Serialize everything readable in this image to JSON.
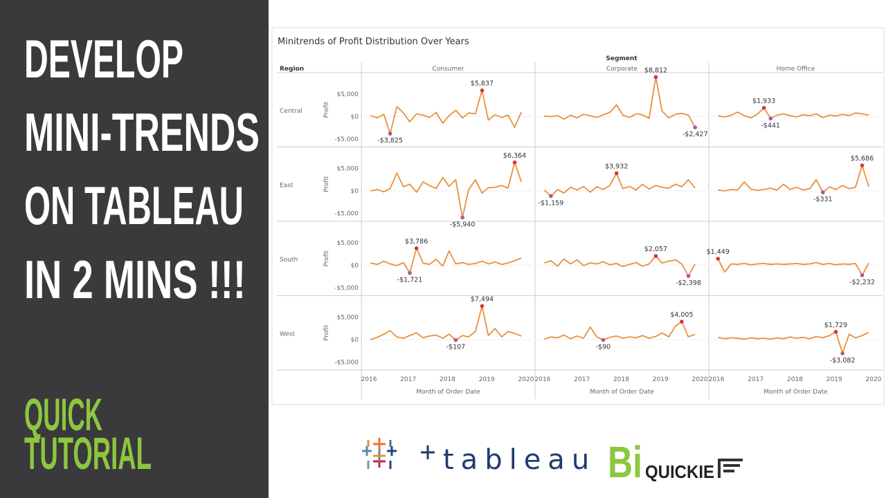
{
  "banner": {
    "title_lines": [
      "DEVELOP",
      "MINI-TRENDS",
      "ON TABLEAU",
      "IN 2 MINS !!!"
    ],
    "subtitle_lines": [
      "QUICK",
      "TUTORIAL"
    ]
  },
  "logos": {
    "tableau": "tableau",
    "bi": "Bi",
    "quickie": "QUICKIE"
  },
  "chart_data": {
    "type": "line",
    "title": "Minitrends of Profit Distribution Over Years",
    "column_header": "Segment",
    "row_header": "Region",
    "columns": [
      "Consumer",
      "Corporate",
      "Home Office"
    ],
    "rows": [
      "Central",
      "East",
      "South",
      "West"
    ],
    "y_label": "Profit",
    "x_label": "Month of Order Date",
    "color": "#e8903c",
    "max_color": "#d1343d",
    "min_color": "#a8579c",
    "xlim": [
      2016,
      2020
    ],
    "xticks": [
      2016,
      2017,
      2018,
      2019,
      2020
    ],
    "ylim": [
      -6800,
      9800
    ],
    "yticks": [
      {
        "value": -5000,
        "label": "-$5,000"
      },
      {
        "value": 0,
        "label": "$0"
      },
      {
        "value": 5000,
        "label": "$5,000"
      }
    ],
    "x": [
      2016.04,
      2016.21,
      2016.38,
      2016.54,
      2016.71,
      2016.88,
      2017.04,
      2017.21,
      2017.38,
      2017.54,
      2017.71,
      2017.88,
      2018.04,
      2018.21,
      2018.38,
      2018.54,
      2018.71,
      2018.88,
      2019.04,
      2019.21,
      2019.38,
      2019.54,
      2019.71,
      2019.88
    ],
    "series": [
      {
        "values": [
          200,
          -300,
          500,
          -3825,
          2200,
          800,
          -1200,
          600,
          300,
          -200,
          900,
          -1500,
          200,
          1400,
          -300,
          800,
          600,
          5837,
          -800,
          400,
          -200,
          300,
          -2400,
          1000
        ],
        "value_labels": [
          null,
          null,
          null,
          "-$3,825",
          null,
          null,
          null,
          null,
          null,
          null,
          null,
          null,
          null,
          null,
          null,
          null,
          null,
          "$5,837",
          null,
          null,
          null,
          null,
          null,
          null
        ]
      },
      {
        "values": [
          100,
          0,
          200,
          -600,
          300,
          -300,
          500,
          200,
          -200,
          400,
          900,
          2600,
          300,
          -200,
          600,
          400,
          -400,
          8812,
          1200,
          -300,
          500,
          700,
          300,
          -2427
        ],
        "value_labels": [
          null,
          null,
          null,
          null,
          null,
          null,
          null,
          null,
          null,
          null,
          null,
          null,
          null,
          null,
          null,
          null,
          null,
          "$8,812",
          null,
          null,
          null,
          null,
          null,
          "-$2,427"
        ]
      },
      {
        "values": [
          200,
          -100,
          300,
          1000,
          200,
          -300,
          500,
          1933,
          -441,
          300,
          600,
          200,
          -100,
          400,
          200,
          600,
          -200,
          300,
          100,
          500,
          200,
          800,
          600,
          300
        ],
        "value_labels": [
          null,
          null,
          null,
          null,
          null,
          null,
          null,
          "$1,933",
          "-$441",
          null,
          null,
          null,
          null,
          null,
          null,
          null,
          null,
          null,
          null,
          null,
          null,
          null,
          null,
          null
        ]
      },
      {
        "values": [
          0,
          300,
          -200,
          500,
          4000,
          900,
          1500,
          -300,
          2000,
          1200,
          500,
          3000,
          1000,
          2500,
          -5940,
          300,
          2500,
          -500,
          700,
          800,
          1200,
          600,
          6364,
          2000
        ],
        "value_labels": [
          null,
          null,
          null,
          null,
          null,
          null,
          null,
          null,
          null,
          null,
          null,
          null,
          null,
          null,
          "-$5,940",
          null,
          null,
          null,
          null,
          null,
          null,
          null,
          "$6,364",
          null
        ]
      },
      {
        "values": [
          200,
          -1159,
          300,
          -500,
          800,
          200,
          1000,
          -300,
          900,
          300,
          1200,
          3932,
          500,
          1000,
          200,
          1500,
          400,
          1200,
          800,
          600,
          1500,
          900,
          2500,
          600
        ],
        "value_labels": [
          null,
          "-$1,159",
          null,
          null,
          null,
          null,
          null,
          null,
          null,
          null,
          null,
          "$3,932",
          null,
          null,
          null,
          null,
          null,
          null,
          null,
          null,
          null,
          null,
          null,
          null
        ]
      },
      {
        "values": [
          200,
          0,
          300,
          200,
          2000,
          400,
          100,
          300,
          600,
          200,
          1500,
          300,
          800,
          200,
          500,
          2500,
          -331,
          900,
          300,
          1200,
          500,
          800,
          5686,
          900
        ],
        "value_labels": [
          null,
          null,
          null,
          null,
          null,
          null,
          null,
          null,
          null,
          null,
          null,
          null,
          null,
          null,
          null,
          null,
          "-$331",
          null,
          null,
          null,
          null,
          null,
          "$5,686",
          null
        ]
      },
      {
        "values": [
          500,
          200,
          900,
          300,
          -100,
          600,
          -1721,
          3786,
          500,
          200,
          1300,
          -200,
          3200,
          300,
          600,
          200,
          400,
          900,
          300,
          700,
          200,
          500,
          1000,
          1600
        ],
        "value_labels": [
          null,
          null,
          null,
          null,
          null,
          null,
          "-$1,721",
          "$3,786",
          null,
          null,
          null,
          null,
          null,
          null,
          null,
          null,
          null,
          null,
          null,
          null,
          null,
          null,
          null,
          null
        ]
      },
      {
        "values": [
          500,
          1000,
          -200,
          1400,
          300,
          1200,
          -100,
          500,
          300,
          800,
          100,
          400,
          -300,
          200,
          600,
          -200,
          300,
          2057,
          500,
          900,
          1200,
          300,
          -2398,
          300
        ],
        "value_labels": [
          null,
          null,
          null,
          null,
          null,
          null,
          null,
          null,
          null,
          null,
          null,
          null,
          null,
          null,
          null,
          null,
          null,
          "$2,057",
          null,
          null,
          null,
          null,
          "-$2,398",
          null
        ]
      },
      {
        "values": [
          1449,
          -1500,
          300,
          200,
          400,
          100,
          300,
          400,
          200,
          300,
          200,
          300,
          400,
          200,
          300,
          600,
          200,
          400,
          100,
          300,
          200,
          400,
          -2232,
          500
        ],
        "value_labels": [
          "$1,449",
          null,
          null,
          null,
          null,
          null,
          null,
          null,
          null,
          null,
          null,
          null,
          null,
          null,
          null,
          null,
          null,
          null,
          null,
          null,
          null,
          null,
          "-$2,232",
          null
        ]
      },
      {
        "values": [
          0,
          500,
          1200,
          2000,
          600,
          300,
          900,
          1500,
          400,
          800,
          1000,
          300,
          1200,
          -107,
          900,
          600,
          1800,
          7494,
          900,
          2500,
          600,
          1800,
          1400,
          800
        ],
        "value_labels": [
          null,
          null,
          null,
          null,
          null,
          null,
          null,
          null,
          null,
          null,
          null,
          null,
          null,
          "-$107",
          null,
          null,
          null,
          "$7,494",
          null,
          null,
          null,
          null,
          null,
          null
        ]
      },
      {
        "values": [
          100,
          600,
          400,
          1000,
          200,
          800,
          300,
          2800,
          600,
          -90,
          500,
          800,
          300,
          600,
          400,
          900,
          300,
          700,
          1500,
          600,
          3000,
          4005,
          600,
          1200
        ],
        "value_labels": [
          null,
          null,
          null,
          null,
          null,
          null,
          null,
          null,
          null,
          "-$90",
          null,
          null,
          null,
          null,
          null,
          null,
          null,
          null,
          null,
          null,
          null,
          "$4,005",
          null,
          null
        ]
      },
      {
        "values": [
          500,
          200,
          400,
          300,
          100,
          400,
          200,
          300,
          100,
          400,
          200,
          600,
          300,
          500,
          200,
          700,
          400,
          900,
          1729,
          -3082,
          1200,
          400,
          900,
          1600
        ],
        "value_labels": [
          null,
          null,
          null,
          null,
          null,
          null,
          null,
          null,
          null,
          null,
          null,
          null,
          null,
          null,
          null,
          null,
          null,
          null,
          "$1,729",
          "-$3,082",
          null,
          null,
          null,
          null
        ]
      }
    ]
  }
}
